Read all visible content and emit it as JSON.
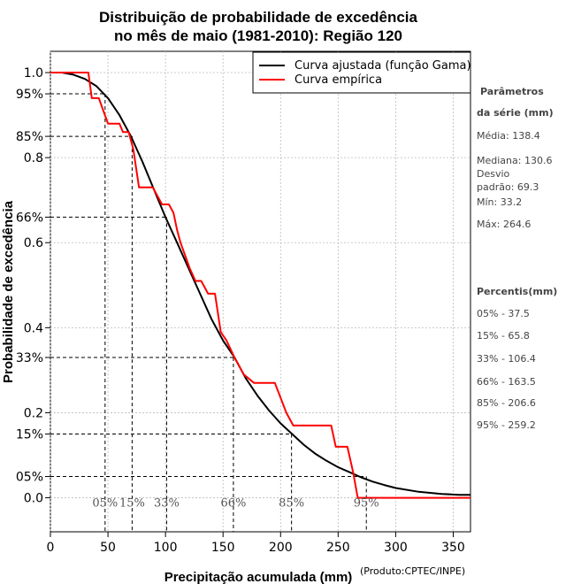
{
  "chart_data": {
    "type": "line",
    "title": [
      "Distribuição de probabilidade de excedência",
      "no mês de maio (1981-2010): Região 120"
    ],
    "xlabel": "Precipitação acumulada (mm)",
    "ylabel": "Probabilidade de excedência",
    "credit": "(Produto:CPTEC/INPE)",
    "xlim": [
      0,
      365
    ],
    "ylim": [
      -0.08,
      1.05
    ],
    "x_ticks": [
      0,
      50,
      100,
      150,
      200,
      250,
      300,
      350
    ],
    "y_ticks": [
      {
        "value": 1.0,
        "label": "1.0"
      },
      {
        "value": 0.95,
        "label": "95%"
      },
      {
        "value": 0.85,
        "label": "85%"
      },
      {
        "value": 0.8,
        "label": "0.8"
      },
      {
        "value": 0.66,
        "label": "66%"
      },
      {
        "value": 0.6,
        "label": "0.6"
      },
      {
        "value": 0.4,
        "label": "0.4"
      },
      {
        "value": 0.33,
        "label": "33%"
      },
      {
        "value": 0.2,
        "label": "0.2"
      },
      {
        "value": 0.15,
        "label": "15%"
      },
      {
        "value": 0.05,
        "label": "05%"
      },
      {
        "value": 0.0,
        "label": "0.0"
      }
    ],
    "legend": {
      "position": "top-right",
      "entries": [
        {
          "label": "Curva ajustada (função Gama)",
          "color": "#000000"
        },
        {
          "label": "Curva empírica",
          "color": "#ff0000"
        }
      ]
    },
    "series": [
      {
        "name": "Curva ajustada (função Gama)",
        "color": "#000000",
        "points": [
          [
            0,
            1.0
          ],
          [
            10,
            1.0
          ],
          [
            20,
            0.995
          ],
          [
            30,
            0.985
          ],
          [
            40,
            0.968
          ],
          [
            50,
            0.94
          ],
          [
            60,
            0.9
          ],
          [
            70,
            0.85
          ],
          [
            80,
            0.79
          ],
          [
            90,
            0.725
          ],
          [
            100,
            0.66
          ],
          [
            110,
            0.6
          ],
          [
            120,
            0.54
          ],
          [
            130,
            0.48
          ],
          [
            140,
            0.42
          ],
          [
            150,
            0.37
          ],
          [
            160,
            0.33
          ],
          [
            170,
            0.28
          ],
          [
            180,
            0.24
          ],
          [
            190,
            0.205
          ],
          [
            200,
            0.175
          ],
          [
            210,
            0.15
          ],
          [
            220,
            0.125
          ],
          [
            230,
            0.104
          ],
          [
            240,
            0.087
          ],
          [
            250,
            0.072
          ],
          [
            260,
            0.06
          ],
          [
            270,
            0.048
          ],
          [
            280,
            0.038
          ],
          [
            290,
            0.03
          ],
          [
            300,
            0.023
          ],
          [
            320,
            0.014
          ],
          [
            340,
            0.009
          ],
          [
            355,
            0.007
          ],
          [
            365,
            0.007
          ]
        ]
      },
      {
        "name": "Curva empírica",
        "color": "#ff0000",
        "points": [
          [
            0,
            1.0
          ],
          [
            33,
            1.0
          ],
          [
            36,
            0.94
          ],
          [
            42,
            0.94
          ],
          [
            50,
            0.88
          ],
          [
            60,
            0.88
          ],
          [
            63,
            0.86
          ],
          [
            68,
            0.86
          ],
          [
            72,
            0.82
          ],
          [
            77,
            0.73
          ],
          [
            89,
            0.73
          ],
          [
            97,
            0.69
          ],
          [
            103,
            0.69
          ],
          [
            107,
            0.67
          ],
          [
            110,
            0.63
          ],
          [
            113,
            0.6
          ],
          [
            121,
            0.54
          ],
          [
            126,
            0.51
          ],
          [
            131,
            0.51
          ],
          [
            137,
            0.48
          ],
          [
            143,
            0.48
          ],
          [
            148,
            0.39
          ],
          [
            153,
            0.37
          ],
          [
            160,
            0.33
          ],
          [
            168,
            0.29
          ],
          [
            177,
            0.27
          ],
          [
            195,
            0.27
          ],
          [
            205,
            0.2
          ],
          [
            211,
            0.17
          ],
          [
            244,
            0.17
          ],
          [
            248,
            0.12
          ],
          [
            258,
            0.12
          ],
          [
            263,
            0.06
          ],
          [
            267,
            0.0
          ],
          [
            365,
            0.0
          ]
        ]
      }
    ],
    "percentiles": [
      {
        "label": "05%",
        "value": 47.5,
        "prob": 0.95
      },
      {
        "label": "15%",
        "value": 71.0,
        "prob": 0.85
      },
      {
        "label": "33%",
        "value": 101.0,
        "prob": 0.66
      },
      {
        "label": "66%",
        "value": 159.0,
        "prob": 0.33
      },
      {
        "label": "85%",
        "value": 209.5,
        "prob": 0.15
      },
      {
        "label": "95%",
        "value": 274.5,
        "prob": 0.05
      }
    ]
  },
  "sidebar": {
    "params_head_1": "Parâmetros",
    "params_head_2": "da série (mm)",
    "media": "Média: 138.4",
    "mediana": "Mediana: 130.6",
    "desvio_1": "Desvio",
    "desvio_2": "padrão: 69.3",
    "min": "Mín: 33.2",
    "max": "Máx: 264.6",
    "percentis_head": "Percentis(mm)",
    "p05": "05% - 37.5",
    "p15": "15% - 65.8",
    "p33": "33% - 106.4",
    "p66": "66% - 163.5",
    "p85": "85% - 206.6",
    "p95": "95% - 259.2"
  }
}
